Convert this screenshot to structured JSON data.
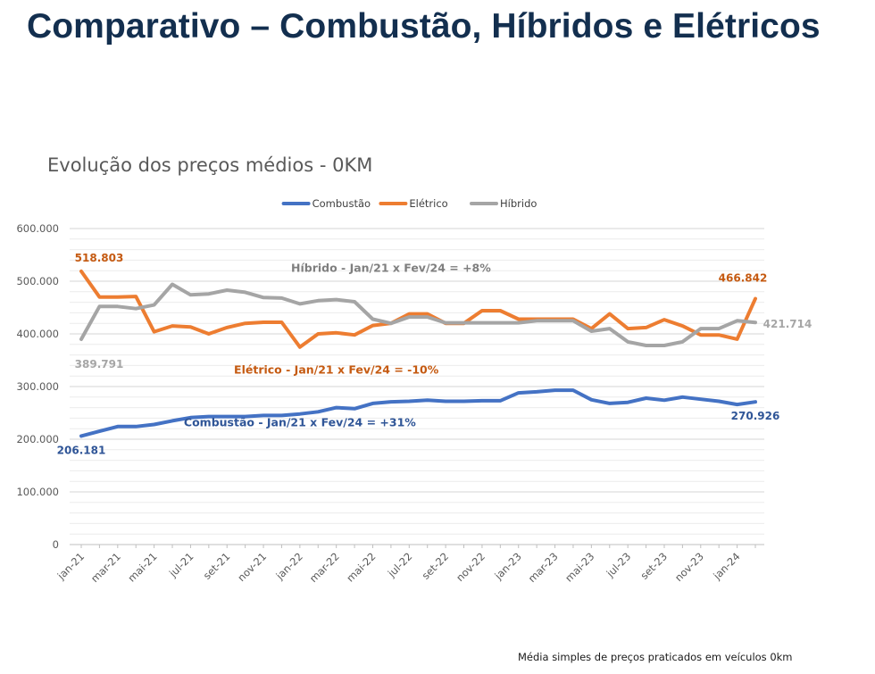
{
  "page": {
    "title": "Comparativo – Combustão, Híbridos e Elétricos",
    "footnote": "Média simples de preços praticados em veículos 0km"
  },
  "chart_data": {
    "type": "line",
    "title": "Evolução dos preços médios - 0KM",
    "xlabel": "",
    "ylabel": "",
    "ylim": [
      0,
      600000
    ],
    "grid": true,
    "legend_position": "top",
    "y_ticks": [
      "0",
      "100.000",
      "200.000",
      "300.000",
      "400.000",
      "500.000",
      "600.000"
    ],
    "x_tick_labels": [
      "jan-21",
      "mar-21",
      "mai-21",
      "jul-21",
      "set-21",
      "nov-21",
      "jan-22",
      "mar-22",
      "mai-22",
      "jul-22",
      "set-22",
      "nov-22",
      "jan-23",
      "mar-23",
      "mai-23",
      "jul-23",
      "set-23",
      "nov-23",
      "jan-24"
    ],
    "x_tick_every": 2,
    "categories": [
      "jan-21",
      "fev-21",
      "mar-21",
      "abr-21",
      "mai-21",
      "jun-21",
      "jul-21",
      "ago-21",
      "set-21",
      "out-21",
      "nov-21",
      "dez-21",
      "jan-22",
      "fev-22",
      "mar-22",
      "abr-22",
      "mai-22",
      "jun-22",
      "jul-22",
      "ago-22",
      "set-22",
      "out-22",
      "nov-22",
      "dez-22",
      "jan-23",
      "fev-23",
      "mar-23",
      "abr-23",
      "mai-23",
      "jun-23",
      "jul-23",
      "ago-23",
      "set-23",
      "out-23",
      "nov-23",
      "dez-23",
      "jan-24",
      "fev-24"
    ],
    "series": [
      {
        "name": "Combustão",
        "color": "#4472c4",
        "values": [
          206181,
          215000,
          224000,
          224000,
          228000,
          235000,
          241000,
          243000,
          243000,
          243000,
          245000,
          245000,
          248000,
          252000,
          260000,
          258000,
          268000,
          271000,
          272000,
          274000,
          272000,
          272000,
          273000,
          273000,
          288000,
          290000,
          293000,
          293000,
          275000,
          268000,
          270000,
          278000,
          274000,
          280000,
          276000,
          272000,
          266000,
          270926
        ]
      },
      {
        "name": "Elétrico",
        "color": "#ed7d31",
        "values": [
          518803,
          470000,
          470000,
          471000,
          404000,
          415000,
          413000,
          400000,
          412000,
          420000,
          422000,
          422000,
          375000,
          400000,
          402000,
          398000,
          416000,
          420000,
          438000,
          438000,
          420000,
          420000,
          444000,
          444000,
          428000,
          428000,
          428000,
          428000,
          410000,
          438000,
          410000,
          412000,
          427000,
          415000,
          398000,
          398000,
          390000,
          466842
        ]
      },
      {
        "name": "Híbrido",
        "color": "#a5a5a5",
        "values": [
          389791,
          452000,
          452000,
          448000,
          455000,
          494000,
          474000,
          476000,
          483000,
          479000,
          469000,
          468000,
          457000,
          463000,
          465000,
          461000,
          428000,
          420000,
          432000,
          432000,
          421000,
          421000,
          421000,
          421000,
          421000,
          425000,
          425000,
          425000,
          405000,
          410000,
          385000,
          378000,
          378000,
          385000,
          410000,
          410000,
          425000,
          421714
        ]
      }
    ],
    "data_labels": [
      {
        "text": "518.803",
        "series": "Elétrico",
        "index": 0,
        "color": "#c55a11"
      },
      {
        "text": "389.791",
        "series": "Híbrido",
        "index": 0,
        "color": "#a6a6a6"
      },
      {
        "text": "206.181",
        "series": "Combustão",
        "index": 0,
        "color": "#2f5597"
      },
      {
        "text": "466.842",
        "series": "Elétrico",
        "index": 37,
        "color": "#c55a11"
      },
      {
        "text": "421.714",
        "series": "Híbrido",
        "index": 37,
        "color": "#a6a6a6"
      },
      {
        "text": "270.926",
        "series": "Combustão",
        "index": 37,
        "color": "#2f5597"
      }
    ],
    "annotations": [
      {
        "text": "Híbrido - Jan/21 x Fev/24 = +8%",
        "color": "#7f7f7f",
        "at_index": 17,
        "at_value": 518000
      },
      {
        "text": "Elétrico - Jan/21 x Fev/24 = -10%",
        "color": "#c55a11",
        "at_index": 14,
        "at_value": 325000
      },
      {
        "text": "Combustão - Jan/21 x Fev/24 = +31%",
        "color": "#2f5597",
        "at_index": 12,
        "at_value": 225000
      }
    ]
  }
}
